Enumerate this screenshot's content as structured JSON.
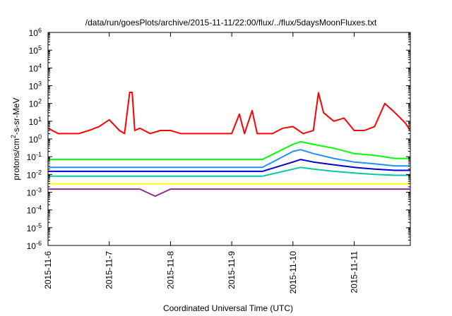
{
  "chart_data": {
    "type": "line",
    "title": "/data/run/goesPlots/archive/2015-11-11/22:00/flux/../flux/5daysMoonFluxes.txt",
    "xlabel": "Coordinated Universal Time (UTC)",
    "ylabel": "protons/cm2-s-sr-MeV",
    "ylabel_parts": {
      "base": "protons/cm",
      "sup": "2",
      "rest": "-s-sr-MeV"
    },
    "y_scale": "log",
    "ylim": [
      1e-06,
      1000000.0
    ],
    "xlim": [
      "2015-11-06T00:00",
      "2015-11-11T22:00"
    ],
    "x_ticks": [
      "2015-11-6",
      "2015-11-7",
      "2015-11-8",
      "2015-11-9",
      "2015-11-10",
      "2015-11-11"
    ],
    "y_ticks": [
      {
        "base": "10",
        "exp": "-6"
      },
      {
        "base": "10",
        "exp": "-5"
      },
      {
        "base": "10",
        "exp": "-4"
      },
      {
        "base": "10",
        "exp": "-3"
      },
      {
        "base": "10",
        "exp": "-2"
      },
      {
        "base": "10",
        "exp": "-1"
      },
      {
        "base": "10",
        "exp": "0"
      },
      {
        "base": "10",
        "exp": "1"
      },
      {
        "base": "10",
        "exp": "2"
      },
      {
        "base": "10",
        "exp": "3"
      },
      {
        "base": "10",
        "exp": "4"
      },
      {
        "base": "10",
        "exp": "5"
      },
      {
        "base": "10",
        "exp": "6"
      }
    ],
    "grid": false,
    "legend": "none",
    "series": [
      {
        "color": "#ff0000",
        "x": [
          "2015-11-06T00:00",
          "2015-11-06T04:00",
          "2015-11-06T08:00",
          "2015-11-06T12:00",
          "2015-11-06T16:00",
          "2015-11-06T20:00",
          "2015-11-07T00:00",
          "2015-11-07T04:00",
          "2015-11-07T06:00",
          "2015-11-07T08:00",
          "2015-11-07T09:00",
          "2015-11-07T10:00",
          "2015-11-07T12:00",
          "2015-11-07T16:00",
          "2015-11-07T20:00",
          "2015-11-08T00:00",
          "2015-11-08T04:00",
          "2015-11-08T08:00",
          "2015-11-08T12:00",
          "2015-11-08T16:00",
          "2015-11-08T20:00",
          "2015-11-09T00:00",
          "2015-11-09T03:00",
          "2015-11-09T05:00",
          "2015-11-09T08:00",
          "2015-11-09T10:00",
          "2015-11-09T12:00",
          "2015-11-09T16:00",
          "2015-11-09T20:00",
          "2015-11-10T00:00",
          "2015-11-10T04:00",
          "2015-11-10T08:00",
          "2015-11-10T10:00",
          "2015-11-10T12:00",
          "2015-11-10T16:00",
          "2015-11-10T20:00",
          "2015-11-11T00:00",
          "2015-11-11T04:00",
          "2015-11-11T08:00",
          "2015-11-11T12:00",
          "2015-11-11T16:00",
          "2015-11-11T20:00",
          "2015-11-11T22:00"
        ],
        "y": [
          4,
          2,
          2,
          2,
          3,
          5,
          12,
          3,
          2,
          420,
          420,
          3,
          4,
          2,
          3,
          3,
          2,
          2,
          2,
          2,
          2,
          2,
          25,
          2,
          40,
          2,
          2,
          2,
          4,
          5,
          2,
          3,
          400,
          30,
          10,
          15,
          3,
          3,
          5,
          100,
          30,
          8,
          3
        ]
      },
      {
        "color": "#00ff00",
        "x": [
          "2015-11-06T00:00",
          "2015-11-06T12:00",
          "2015-11-07T00:00",
          "2015-11-07T12:00",
          "2015-11-08T00:00",
          "2015-11-08T12:00",
          "2015-11-09T00:00",
          "2015-11-09T12:00",
          "2015-11-10T00:00",
          "2015-11-10T03:00",
          "2015-11-10T08:00",
          "2015-11-10T16:00",
          "2015-11-11T00:00",
          "2015-11-11T08:00",
          "2015-11-11T16:00",
          "2015-11-11T22:00"
        ],
        "y": [
          0.07,
          0.07,
          0.07,
          0.07,
          0.07,
          0.07,
          0.07,
          0.07,
          0.5,
          0.7,
          0.5,
          0.3,
          0.15,
          0.12,
          0.08,
          0.08
        ]
      },
      {
        "color": "#1e90ff",
        "x": [
          "2015-11-06T00:00",
          "2015-11-06T12:00",
          "2015-11-07T00:00",
          "2015-11-07T12:00",
          "2015-11-08T00:00",
          "2015-11-08T12:00",
          "2015-11-09T00:00",
          "2015-11-09T12:00",
          "2015-11-10T00:00",
          "2015-11-10T03:00",
          "2015-11-10T08:00",
          "2015-11-10T16:00",
          "2015-11-11T00:00",
          "2015-11-11T08:00",
          "2015-11-11T16:00",
          "2015-11-11T22:00"
        ],
        "y": [
          0.025,
          0.025,
          0.025,
          0.025,
          0.025,
          0.025,
          0.025,
          0.025,
          0.2,
          0.25,
          0.15,
          0.08,
          0.05,
          0.04,
          0.03,
          0.03
        ]
      },
      {
        "color": "#00c8a0",
        "x": [
          "2015-11-06T00:00",
          "2015-11-06T12:00",
          "2015-11-07T00:00",
          "2015-11-07T12:00",
          "2015-11-08T00:00",
          "2015-11-08T12:00",
          "2015-11-09T00:00",
          "2015-11-09T12:00",
          "2015-11-10T00:00",
          "2015-11-10T03:00",
          "2015-11-10T08:00",
          "2015-11-10T16:00",
          "2015-11-11T00:00",
          "2015-11-11T08:00",
          "2015-11-11T16:00",
          "2015-11-11T22:00"
        ],
        "y": [
          0.008,
          0.008,
          0.008,
          0.008,
          0.008,
          0.008,
          0.008,
          0.008,
          0.02,
          0.025,
          0.02,
          0.015,
          0.012,
          0.01,
          0.009,
          0.009
        ]
      },
      {
        "color": "#0000d0",
        "x": [
          "2015-11-06T00:00",
          "2015-11-06T12:00",
          "2015-11-07T00:00",
          "2015-11-07T12:00",
          "2015-11-08T00:00",
          "2015-11-08T12:00",
          "2015-11-09T00:00",
          "2015-11-09T12:00",
          "2015-11-10T00:00",
          "2015-11-10T03:00",
          "2015-11-10T08:00",
          "2015-11-10T16:00",
          "2015-11-11T00:00",
          "2015-11-11T08:00",
          "2015-11-11T16:00",
          "2015-11-11T22:00"
        ],
        "y": [
          0.015,
          0.015,
          0.015,
          0.015,
          0.015,
          0.015,
          0.015,
          0.015,
          0.05,
          0.07,
          0.05,
          0.035,
          0.025,
          0.02,
          0.017,
          0.017
        ]
      },
      {
        "color": "#ffff00",
        "x": [
          "2015-11-06T00:00",
          "2015-11-07T00:00",
          "2015-11-08T00:00",
          "2015-11-09T00:00",
          "2015-11-10T00:00",
          "2015-11-11T00:00",
          "2015-11-11T22:00"
        ],
        "y": [
          0.003,
          0.003,
          0.003,
          0.003,
          0.003,
          0.003,
          0.003
        ]
      },
      {
        "color": "#8b2f8b",
        "x": [
          "2015-11-06T00:00",
          "2015-11-06T12:00",
          "2015-11-07T00:00",
          "2015-11-07T12:00",
          "2015-11-07T18:00",
          "2015-11-08T00:00",
          "2015-11-08T12:00",
          "2015-11-09T00:00",
          "2015-11-09T12:00",
          "2015-11-10T00:00",
          "2015-11-10T12:00",
          "2015-11-11T00:00",
          "2015-11-11T12:00",
          "2015-11-11T22:00"
        ],
        "y": [
          0.0015,
          0.0015,
          0.0015,
          0.0015,
          0.0006,
          0.0015,
          0.0015,
          0.0015,
          0.0015,
          0.0015,
          0.0015,
          0.0015,
          0.0015,
          0.0015
        ]
      }
    ]
  }
}
